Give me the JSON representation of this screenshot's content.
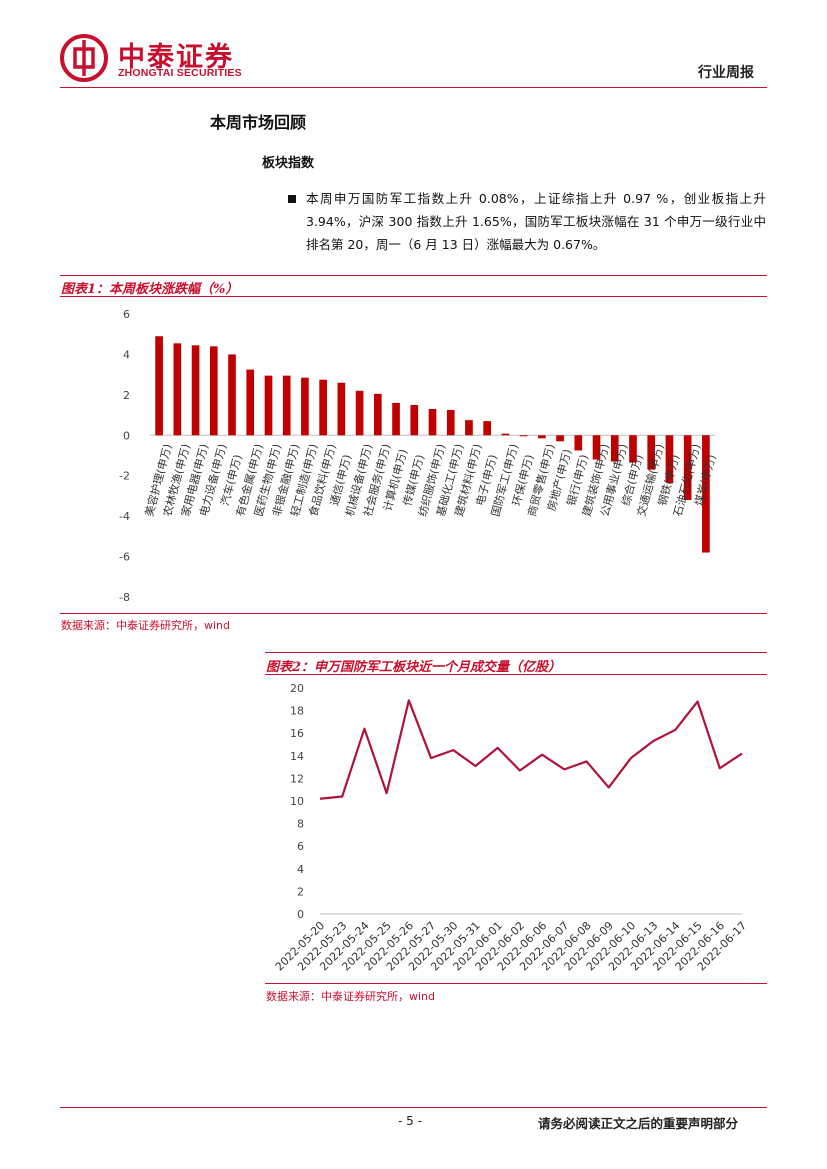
{
  "header": {
    "logo_name": "中泰证券",
    "logo_en": "ZHONGTAI SECURITIES",
    "report_type": "行业周报"
  },
  "section": {
    "title": "本周市场回顾",
    "subtitle": "板块指数",
    "paragraph": "本周申万国防军工指数上升 0.08%，上证综指上升 0.97 %，创业板指上升3.94%，沪深 300 指数上升 1.65%，国防军工板块涨幅在 31 个申万一级行业中排名第 20，周一（6 月 13 日）涨幅最大为 0.67%。"
  },
  "figure1": {
    "caption": "图表1：本周板块涨跌幅（%）",
    "source": "数据来源：中泰证券研究所，wind"
  },
  "figure2": {
    "caption": "图表2：申万国防军工板块近一个月成交量（亿股）",
    "source": "数据来源：中泰证券研究所，wind"
  },
  "chart_data": [
    {
      "type": "bar",
      "categories": [
        "美容护理(申万)",
        "农林牧渔(申万)",
        "家用电器(申万)",
        "电力设备(申万)",
        "汽车(申万)",
        "有色金属(申万)",
        "医药生物(申万)",
        "非银金融(申万)",
        "轻工制造(申万)",
        "食品饮料(申万)",
        "通信(申万)",
        "机械设备(申万)",
        "社会服务(申万)",
        "计算机(申万)",
        "传媒(申万)",
        "纺织服饰(申万)",
        "基础化工(申万)",
        "建筑材料(申万)",
        "电子(申万)",
        "国防军工(申万)",
        "环保(申万)",
        "商贸零售(申万)",
        "房地产(申万)",
        "银行(申万)",
        "建筑装饰(申万)",
        "公用事业(申万)",
        "综合(申万)",
        "交通运输(申万)",
        "钢铁(申万)",
        "石油石化(申万)",
        "煤炭(申万)"
      ],
      "values": [
        4.9,
        4.55,
        4.45,
        4.4,
        4.0,
        3.25,
        2.95,
        2.95,
        2.85,
        2.75,
        2.6,
        2.2,
        2.05,
        1.6,
        1.5,
        1.3,
        1.25,
        0.75,
        0.7,
        0.08,
        -0.05,
        -0.15,
        -0.3,
        -0.75,
        -1.2,
        -1.3,
        -1.35,
        -1.7,
        -2.35,
        -3.2,
        -5.8
      ],
      "ylim": [
        -8,
        6
      ],
      "yticks": [
        "6",
        "4",
        "2",
        "0",
        "-2",
        "-4",
        "-6",
        "-8"
      ],
      "color": "#c00000"
    },
    {
      "type": "line",
      "x": [
        "2022-05-20",
        "2022-05-23",
        "2022-05-24",
        "2022-05-25",
        "2022-05-26",
        "2022-05-27",
        "2022-05-30",
        "2022-05-31",
        "2022-06-01",
        "2022-06-02",
        "2022-06-06",
        "2022-06-07",
        "2022-06-08",
        "2022-06-09",
        "2022-06-10",
        "2022-06-13",
        "2022-06-14",
        "2022-06-15",
        "2022-06-16",
        "2022-06-17"
      ],
      "values": [
        10.2,
        10.4,
        16.4,
        10.7,
        18.9,
        13.8,
        14.5,
        13.1,
        14.7,
        12.7,
        14.1,
        12.8,
        13.5,
        11.2,
        13.8,
        15.3,
        16.3,
        18.8,
        12.9,
        14.2
      ],
      "ylim": [
        0,
        20
      ],
      "yticks": [
        "20",
        "18",
        "16",
        "14",
        "12",
        "10",
        "8",
        "6",
        "4",
        "2",
        "0"
      ],
      "color": "#b0133a"
    }
  ],
  "footer": {
    "page_number": "- 5 -",
    "disclaimer": "请务必阅读正文之后的重要声明部分"
  }
}
